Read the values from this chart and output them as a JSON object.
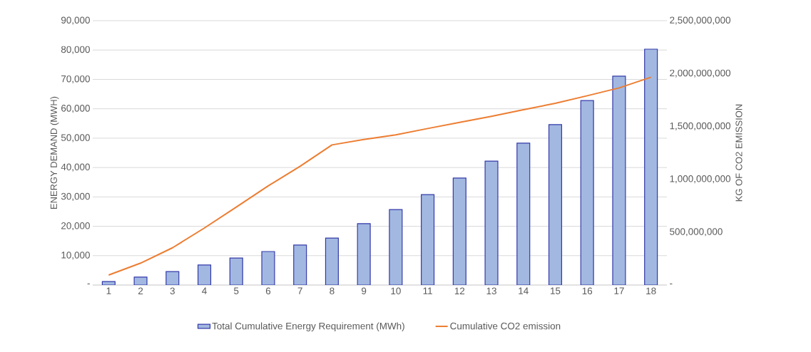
{
  "chart_data": {
    "type": "bar",
    "categories": [
      "1",
      "2",
      "3",
      "4",
      "5",
      "6",
      "7",
      "8",
      "9",
      "10",
      "11",
      "12",
      "13",
      "14",
      "15",
      "16",
      "17",
      "18"
    ],
    "ylabel": "ENERGY DEMAND (MWH)",
    "y2label": "KG OF CO2 EMISSION",
    "series": [
      {
        "name": "Total Cumulative Energy Requirement (MWh)",
        "color": "#a2b8e1",
        "values": [
          1200,
          2700,
          4600,
          6800,
          9200,
          11400,
          13600,
          16000,
          20900,
          25700,
          30800,
          36400,
          42200,
          48300,
          54600,
          62800,
          71100,
          80300
        ]
      },
      {
        "name": "Cumulative CO2 emission",
        "type": "line",
        "axis": "y2",
        "color": "#ed7d31",
        "values": [
          94000000,
          207000000,
          352000000,
          539000000,
          737000000,
          937000000,
          1123000000,
          1325000000,
          1377000000,
          1420000000,
          1480000000,
          1538000000,
          1595000000,
          1658000000,
          1718000000,
          1790000000,
          1864000000,
          1965000000
        ]
      }
    ],
    "ylim": [
      0,
      90000
    ],
    "yticks": [
      {
        "value": 0,
        "label": "-"
      },
      {
        "value": 10000,
        "label": "10,000"
      },
      {
        "value": 20000,
        "label": "20,000"
      },
      {
        "value": 30000,
        "label": "30,000"
      },
      {
        "value": 40000,
        "label": "40,000"
      },
      {
        "value": 50000,
        "label": "50,000"
      },
      {
        "value": 60000,
        "label": "60,000"
      },
      {
        "value": 70000,
        "label": "70,000"
      },
      {
        "value": 80000,
        "label": "80,000"
      },
      {
        "value": 90000,
        "label": "90,000"
      }
    ],
    "y2lim": [
      0,
      2500000000
    ],
    "y2ticks": [
      {
        "value": 0,
        "label": "-"
      },
      {
        "value": 500000000,
        "label": "500,000,000"
      },
      {
        "value": 1000000000,
        "label": "1,000,000,000"
      },
      {
        "value": 1500000000,
        "label": "1,500,000,000"
      },
      {
        "value": 2000000000,
        "label": "2,000,000,000"
      },
      {
        "value": 2500000000,
        "label": "2,500,000,000"
      }
    ],
    "grid": "y",
    "legend": "bottom"
  }
}
